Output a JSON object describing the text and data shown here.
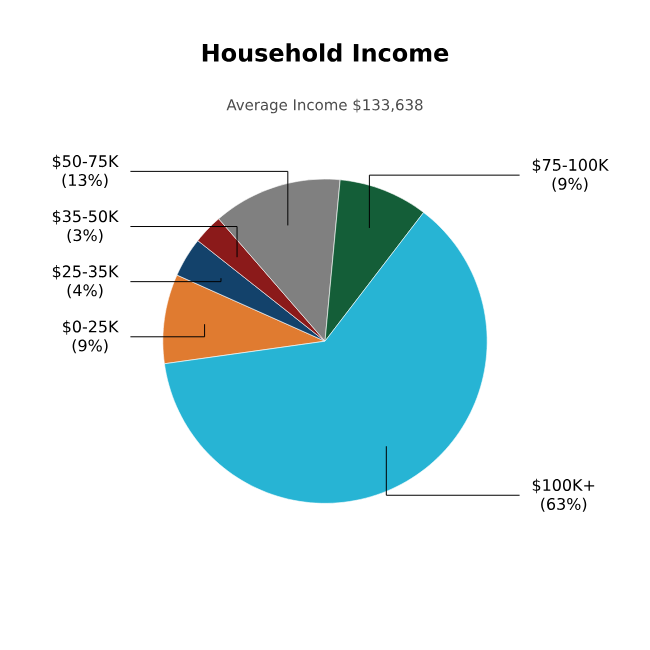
{
  "chart_data": {
    "type": "pie",
    "title": "Household Income",
    "subtitle": "Average Income  $133,638",
    "categories": [
      "$0-25K",
      "$25-35K",
      "$35-50K",
      "$50-75K",
      "$75-100K",
      "$100K+"
    ],
    "values": [
      9,
      4,
      3,
      13,
      9,
      63
    ],
    "value_labels": [
      "(9%)",
      "(4%)",
      "(3%)",
      "(13%)",
      "(9%)",
      "(63%)"
    ],
    "colors": [
      "#e07b30",
      "#13426b",
      "#8b1a1a",
      "#808080",
      "#145e38",
      "#27b4d4"
    ]
  }
}
